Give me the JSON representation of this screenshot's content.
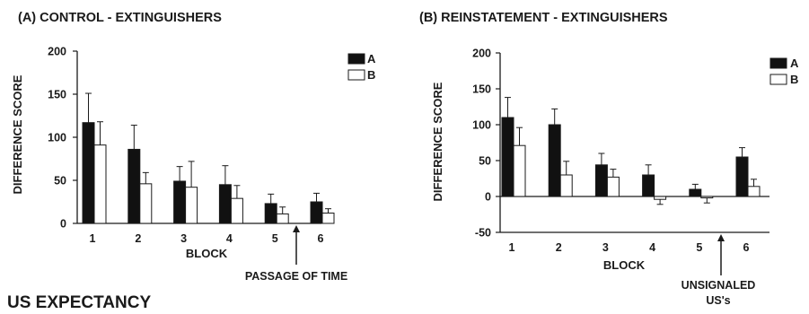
{
  "figure_caption": "US EXPECTANCY",
  "colors": {
    "series_a": "#111111",
    "series_b": "#ffffff",
    "ink": "#1a1a1a"
  },
  "chart_data": [
    {
      "type": "bar",
      "title": "(A) CONTROL - EXTINGUISHERS",
      "xlabel": "BLOCK",
      "ylabel": "DIFFERENCE SCORE",
      "categories": [
        "1",
        "2",
        "3",
        "4",
        "5",
        "6"
      ],
      "ylim": [
        0,
        200
      ],
      "yticks": [
        0,
        50,
        100,
        150,
        200
      ],
      "legend_position": "top-right",
      "series": [
        {
          "name": "A",
          "values": [
            117,
            86,
            49,
            45,
            23,
            25
          ],
          "errors": [
            34,
            28,
            17,
            22,
            11,
            10
          ]
        },
        {
          "name": "B",
          "values": [
            91,
            46,
            42,
            29,
            11,
            12
          ],
          "errors": [
            27,
            13,
            30,
            15,
            8,
            5
          ]
        }
      ],
      "annotation": {
        "text": "PASSAGE OF TIME",
        "between_categories": [
          "5",
          "6"
        ]
      }
    },
    {
      "type": "bar",
      "title": "(B) REINSTATEMENT - EXTINGUISHERS",
      "xlabel": "BLOCK",
      "ylabel": "DIFFERENCE SCORE",
      "categories": [
        "1",
        "2",
        "3",
        "4",
        "5",
        "6"
      ],
      "ylim": [
        -50,
        200
      ],
      "yticks": [
        -50,
        0,
        50,
        100,
        150,
        200
      ],
      "legend_position": "top-right",
      "series": [
        {
          "name": "A",
          "values": [
            110,
            100,
            44,
            30,
            10,
            55
          ],
          "errors": [
            28,
            22,
            16,
            14,
            7,
            13
          ]
        },
        {
          "name": "B",
          "values": [
            71,
            30,
            27,
            -4,
            -2,
            14
          ],
          "errors": [
            25,
            19,
            11,
            7,
            7,
            10
          ]
        }
      ],
      "annotation": {
        "text_lines": [
          "UNSIGNALED",
          "US's"
        ],
        "between_categories": [
          "5",
          "6"
        ]
      }
    }
  ]
}
